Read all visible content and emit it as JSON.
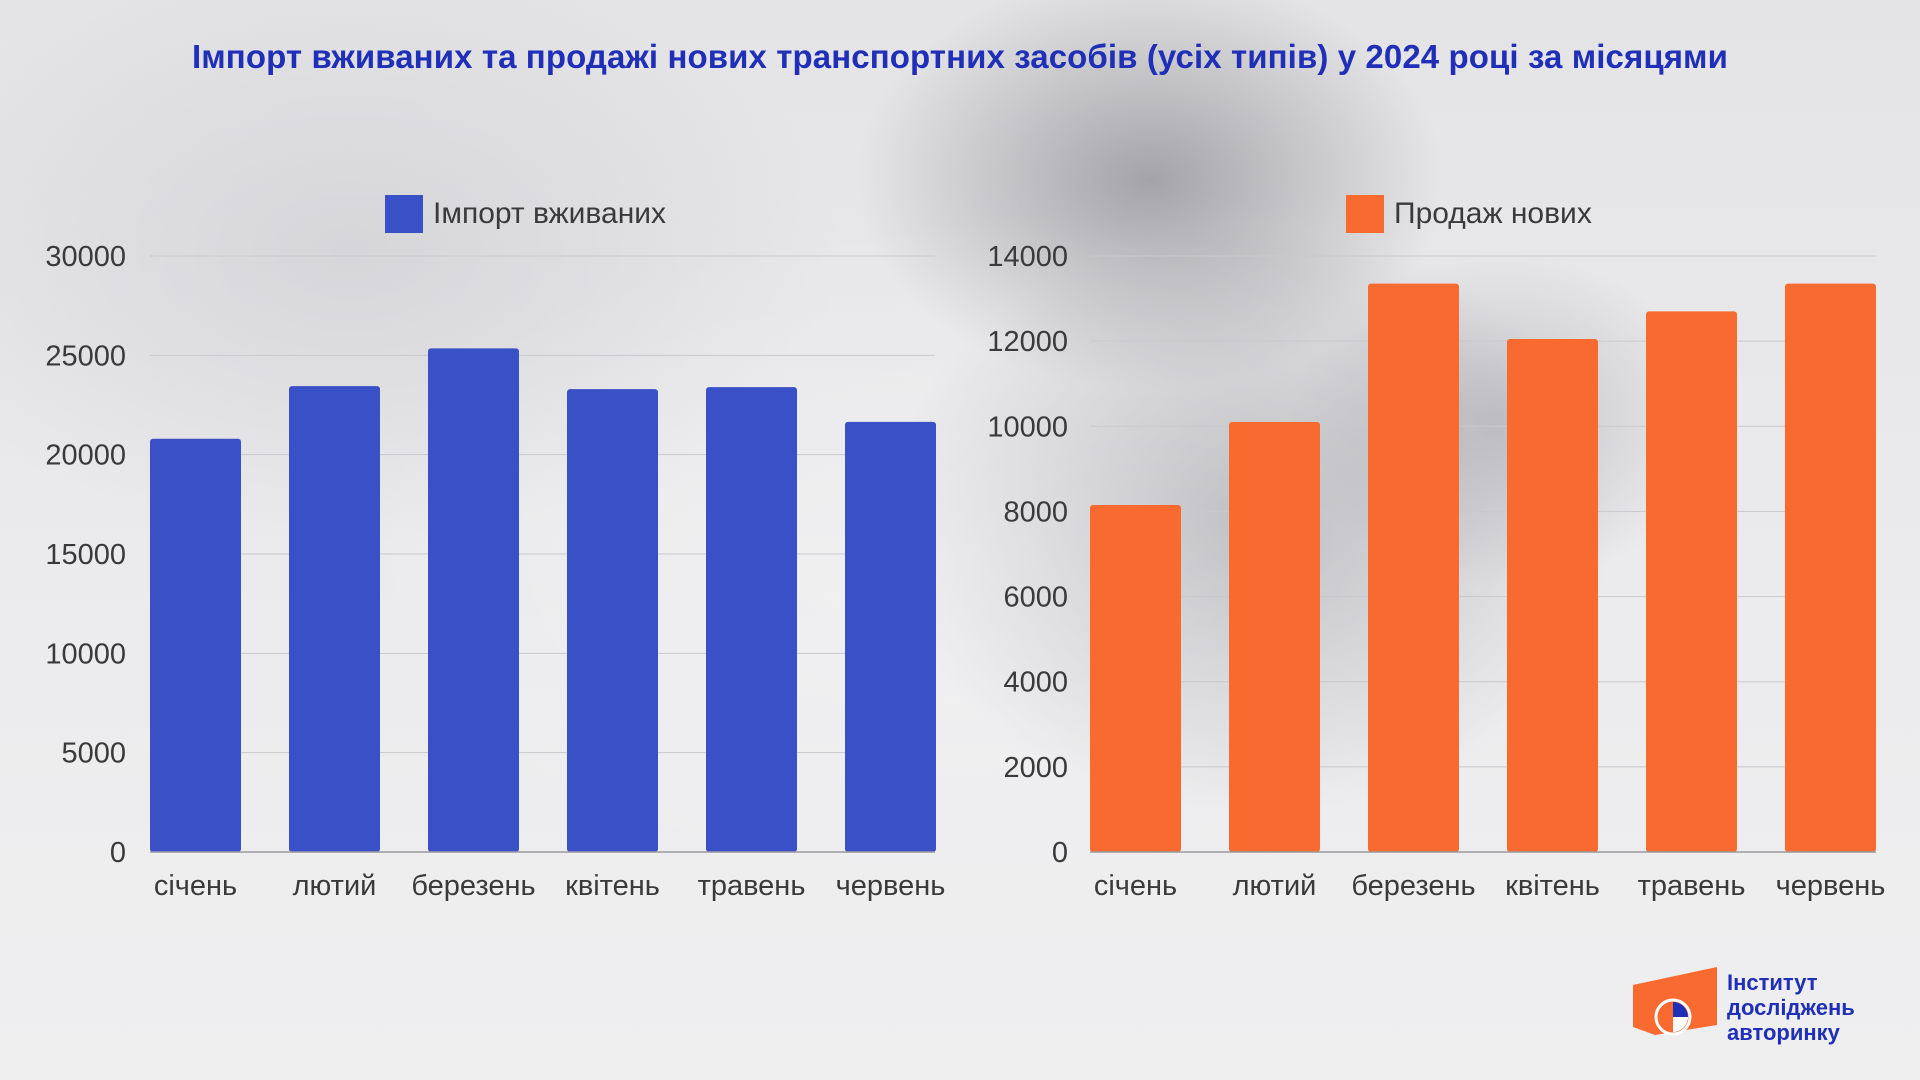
{
  "title": "Імпорт вживаних та продажі нових транспортних засобів (усіх типів) у 2024 році за місяцями",
  "colors": {
    "used_import": "#3a50c6",
    "new_sales": "#f96a31",
    "title": "#1f2fb8",
    "axis_text": "#3a3a3a",
    "grid": "#c9c9cc"
  },
  "chart_data": [
    {
      "type": "bar",
      "categories": [
        "січень",
        "лютий",
        "березень",
        "квітень",
        "травень",
        "червень"
      ],
      "series": [
        {
          "name": "Імпорт вживаних",
          "values": [
            20800,
            23450,
            25350,
            23300,
            23400,
            21650
          ]
        }
      ],
      "ylim": [
        0,
        30000
      ],
      "yticks": [
        0,
        5000,
        10000,
        15000,
        20000,
        25000,
        30000
      ],
      "grid": true,
      "legend": "top-center"
    },
    {
      "type": "bar",
      "categories": [
        "січень",
        "лютий",
        "березень",
        "квітень",
        "травень",
        "червень"
      ],
      "series": [
        {
          "name": "Продаж нових",
          "values": [
            8150,
            10100,
            13350,
            12050,
            12700,
            13350
          ]
        }
      ],
      "ylim": [
        0,
        14000
      ],
      "yticks": [
        0,
        2000,
        4000,
        6000,
        8000,
        10000,
        12000,
        14000
      ],
      "grid": true,
      "legend": "top-center"
    }
  ],
  "logo": {
    "line1": "Інститут",
    "line2": "досліджень",
    "line3": "авторинку"
  }
}
